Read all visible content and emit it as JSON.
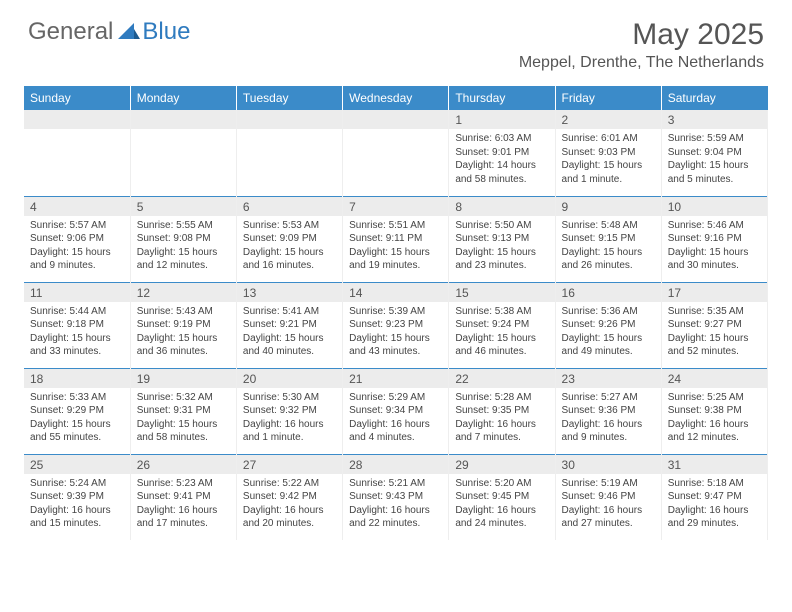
{
  "logo": {
    "general": "General",
    "blue": "Blue"
  },
  "header": {
    "month_title": "May 2025",
    "location": "Meppel, Drenthe, The Netherlands"
  },
  "colors": {
    "header_bg": "#3b8bc9",
    "header_text": "#ffffff",
    "daynum_bg": "#ececec",
    "text": "#444444",
    "row_divider": "#3b8bc9",
    "logo_blue": "#2f7bbf"
  },
  "day_headers": [
    "Sunday",
    "Monday",
    "Tuesday",
    "Wednesday",
    "Thursday",
    "Friday",
    "Saturday"
  ],
  "weeks": [
    [
      null,
      null,
      null,
      null,
      {
        "n": "1",
        "sr": "6:03 AM",
        "ss": "9:01 PM",
        "dl": "14 hours and 58 minutes."
      },
      {
        "n": "2",
        "sr": "6:01 AM",
        "ss": "9:03 PM",
        "dl": "15 hours and 1 minute."
      },
      {
        "n": "3",
        "sr": "5:59 AM",
        "ss": "9:04 PM",
        "dl": "15 hours and 5 minutes."
      }
    ],
    [
      {
        "n": "4",
        "sr": "5:57 AM",
        "ss": "9:06 PM",
        "dl": "15 hours and 9 minutes."
      },
      {
        "n": "5",
        "sr": "5:55 AM",
        "ss": "9:08 PM",
        "dl": "15 hours and 12 minutes."
      },
      {
        "n": "6",
        "sr": "5:53 AM",
        "ss": "9:09 PM",
        "dl": "15 hours and 16 minutes."
      },
      {
        "n": "7",
        "sr": "5:51 AM",
        "ss": "9:11 PM",
        "dl": "15 hours and 19 minutes."
      },
      {
        "n": "8",
        "sr": "5:50 AM",
        "ss": "9:13 PM",
        "dl": "15 hours and 23 minutes."
      },
      {
        "n": "9",
        "sr": "5:48 AM",
        "ss": "9:15 PM",
        "dl": "15 hours and 26 minutes."
      },
      {
        "n": "10",
        "sr": "5:46 AM",
        "ss": "9:16 PM",
        "dl": "15 hours and 30 minutes."
      }
    ],
    [
      {
        "n": "11",
        "sr": "5:44 AM",
        "ss": "9:18 PM",
        "dl": "15 hours and 33 minutes."
      },
      {
        "n": "12",
        "sr": "5:43 AM",
        "ss": "9:19 PM",
        "dl": "15 hours and 36 minutes."
      },
      {
        "n": "13",
        "sr": "5:41 AM",
        "ss": "9:21 PM",
        "dl": "15 hours and 40 minutes."
      },
      {
        "n": "14",
        "sr": "5:39 AM",
        "ss": "9:23 PM",
        "dl": "15 hours and 43 minutes."
      },
      {
        "n": "15",
        "sr": "5:38 AM",
        "ss": "9:24 PM",
        "dl": "15 hours and 46 minutes."
      },
      {
        "n": "16",
        "sr": "5:36 AM",
        "ss": "9:26 PM",
        "dl": "15 hours and 49 minutes."
      },
      {
        "n": "17",
        "sr": "5:35 AM",
        "ss": "9:27 PM",
        "dl": "15 hours and 52 minutes."
      }
    ],
    [
      {
        "n": "18",
        "sr": "5:33 AM",
        "ss": "9:29 PM",
        "dl": "15 hours and 55 minutes."
      },
      {
        "n": "19",
        "sr": "5:32 AM",
        "ss": "9:31 PM",
        "dl": "15 hours and 58 minutes."
      },
      {
        "n": "20",
        "sr": "5:30 AM",
        "ss": "9:32 PM",
        "dl": "16 hours and 1 minute."
      },
      {
        "n": "21",
        "sr": "5:29 AM",
        "ss": "9:34 PM",
        "dl": "16 hours and 4 minutes."
      },
      {
        "n": "22",
        "sr": "5:28 AM",
        "ss": "9:35 PM",
        "dl": "16 hours and 7 minutes."
      },
      {
        "n": "23",
        "sr": "5:27 AM",
        "ss": "9:36 PM",
        "dl": "16 hours and 9 minutes."
      },
      {
        "n": "24",
        "sr": "5:25 AM",
        "ss": "9:38 PM",
        "dl": "16 hours and 12 minutes."
      }
    ],
    [
      {
        "n": "25",
        "sr": "5:24 AM",
        "ss": "9:39 PM",
        "dl": "16 hours and 15 minutes."
      },
      {
        "n": "26",
        "sr": "5:23 AM",
        "ss": "9:41 PM",
        "dl": "16 hours and 17 minutes."
      },
      {
        "n": "27",
        "sr": "5:22 AM",
        "ss": "9:42 PM",
        "dl": "16 hours and 20 minutes."
      },
      {
        "n": "28",
        "sr": "5:21 AM",
        "ss": "9:43 PM",
        "dl": "16 hours and 22 minutes."
      },
      {
        "n": "29",
        "sr": "5:20 AM",
        "ss": "9:45 PM",
        "dl": "16 hours and 24 minutes."
      },
      {
        "n": "30",
        "sr": "5:19 AM",
        "ss": "9:46 PM",
        "dl": "16 hours and 27 minutes."
      },
      {
        "n": "31",
        "sr": "5:18 AM",
        "ss": "9:47 PM",
        "dl": "16 hours and 29 minutes."
      }
    ]
  ],
  "labels": {
    "sunrise": "Sunrise: ",
    "sunset": "Sunset: ",
    "daylight": "Daylight: "
  }
}
